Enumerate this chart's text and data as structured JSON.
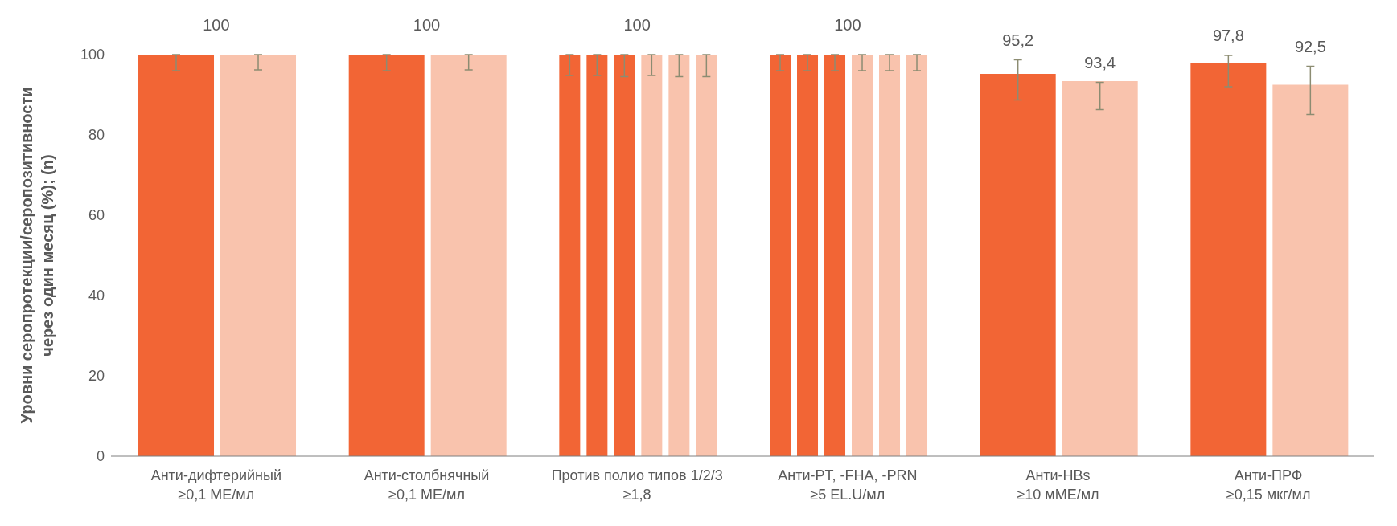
{
  "chart_data": {
    "type": "bar",
    "ylabel": "Уровни серопротекции/серопозитивности через один месяц (%); (n)",
    "categories": [
      "Анти-дифтерийный\n≥0,1 МЕ/мл",
      "Анти-столбнячный\n≥0,1 МЕ/мл",
      "Против полио типов 1/2/3\n≥1,8",
      "Анти-PT, -FHA, -PRN\n≥5 EL.U/мл",
      "Анти-HBs\n≥10 мМЕ/мл",
      "Анти-ПРФ\n≥0,15 мкг/мл"
    ],
    "series": [
      {
        "color": "#f26535",
        "values": [
          100,
          100,
          100,
          100,
          95.2,
          97.8
        ],
        "errors": [
          [
            96,
            100
          ],
          [
            96,
            100
          ],
          [
            94.8,
            100
          ],
          [
            96,
            100
          ],
          [
            88.7,
            98.7
          ],
          [
            92,
            99.8
          ]
        ],
        "value_labels": [
          null,
          null,
          null,
          null,
          "95,2",
          "97,8"
        ]
      },
      {
        "color": "#f26535",
        "values": [
          null,
          null,
          100,
          100,
          null,
          null
        ],
        "errors": [
          null,
          null,
          [
            94.8,
            100
          ],
          [
            96,
            100
          ],
          null,
          null
        ]
      },
      {
        "color": "#f26535",
        "values": [
          null,
          null,
          100,
          100,
          null,
          null
        ],
        "errors": [
          null,
          null,
          [
            94.5,
            100
          ],
          [
            96,
            100
          ],
          null,
          null
        ]
      },
      {
        "color": "#f9c3ad",
        "values": [
          100,
          100,
          100,
          100,
          93.4,
          92.5
        ],
        "errors": [
          [
            96.2,
            100
          ],
          [
            96.2,
            100
          ],
          [
            94.8,
            100
          ],
          [
            96,
            100
          ],
          [
            86.3,
            93.1
          ],
          [
            85.1,
            97.1
          ]
        ],
        "value_labels": [
          null,
          null,
          null,
          null,
          "93,4",
          "92,5"
        ]
      },
      {
        "color": "#f9c3ad",
        "values": [
          null,
          null,
          100,
          100,
          null,
          null
        ],
        "errors": [
          null,
          null,
          [
            94.5,
            100
          ],
          [
            96,
            100
          ],
          null,
          null
        ]
      },
      {
        "color": "#f9c3ad",
        "values": [
          null,
          null,
          100,
          100,
          null,
          null
        ],
        "errors": [
          null,
          null,
          [
            94.5,
            100
          ],
          [
            96,
            100
          ],
          null,
          null
        ]
      }
    ],
    "annotations": [
      {
        "text": "100",
        "x": "Анти-дифтерийный\n≥0,1 МЕ/мл",
        "y": 100
      },
      {
        "text": "100",
        "x": "Анти-столбнячный\n≥0,1 МЕ/мл",
        "y": 100
      },
      {
        "text": "100",
        "x": "Против полио типов 1/2/3\n≥1,8",
        "y": 100
      },
      {
        "text": "100",
        "x": "Анти-PT, -FHA, -PRN\n≥5 EL.U/мл",
        "y": 100
      }
    ],
    "ylim": [
      0,
      100
    ],
    "yticks": [
      0,
      20,
      40,
      60,
      80,
      100
    ]
  }
}
